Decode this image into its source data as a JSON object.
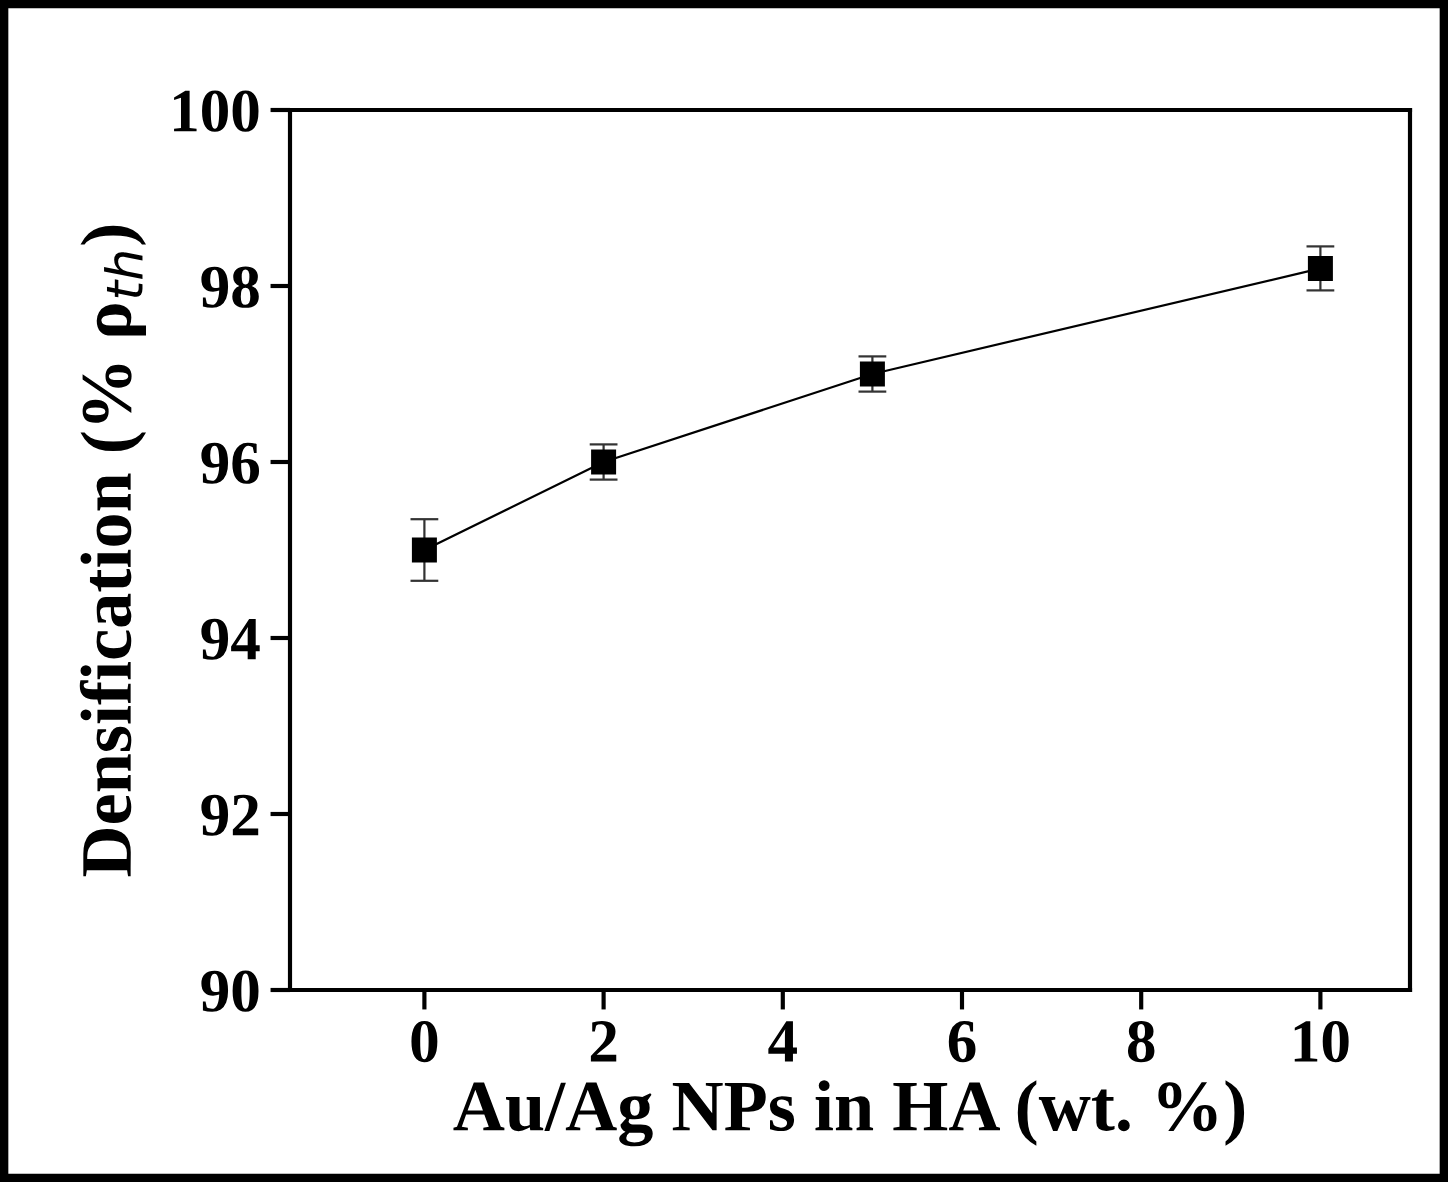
{
  "chart_data": {
    "type": "line",
    "xlabel": "Au/Ag NPs in HA (wt. %)",
    "ylabel": "Densification (% ρ$_{th}$)",
    "x": [
      0,
      2,
      5,
      10
    ],
    "series": [
      {
        "color": "#000000",
        "values": [
          95.0,
          96.0,
          97.0,
          98.2
        ],
        "errors": [
          0.35,
          0.2,
          0.2,
          0.25
        ]
      }
    ],
    "xlim": [
      -1.5,
      11
    ],
    "xticks": [
      0,
      2,
      4,
      6,
      8,
      10
    ],
    "ylim": [
      90,
      100
    ],
    "yticks": [
      90,
      92,
      94,
      96,
      98,
      100
    ],
    "marker": "square",
    "line_style": "solid",
    "grid": false,
    "legend": false
  }
}
